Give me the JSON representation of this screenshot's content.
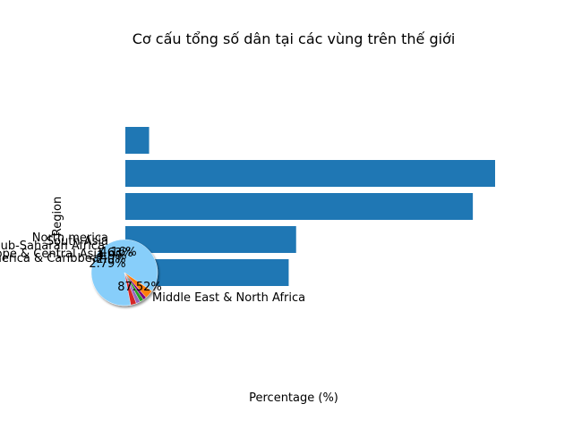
{
  "chart_data": [
    {
      "type": "bar",
      "orientation": "horizontal",
      "title": "Cơ cấu tổng số dân tại các vùng trên thế giới",
      "xlabel": "Percentage (%)",
      "ylabel": "Region",
      "bars_bottom_to_top": [
        {
          "value": 55
        },
        {
          "value": 57.5
        },
        {
          "value": 117
        },
        {
          "value": 124.5
        },
        {
          "value": 8
        }
      ],
      "xlim": [
        0,
        124.5
      ],
      "colors": {
        "bar": "#1f77b4"
      }
    },
    {
      "type": "pie",
      "slices": [
        {
          "label": "Middle East & North Africa",
          "value": 87.52,
          "pct_label": "87.52%",
          "color": "#87cefa"
        },
        {
          "label": "Latin America & Caribbean",
          "value": 2.79,
          "pct_label": "2.79%",
          "color": "#d62728"
        },
        {
          "label": "Europe & Central Asia",
          "value": 2.0,
          "pct_label": "2.0%",
          "color": "#9467bd"
        },
        {
          "label": "Sub-Saharan Africa",
          "value": 1.9,
          "pct_label": "1.9%",
          "color": "#2ca02c"
        },
        {
          "label": "South Asia",
          "value": 1.63,
          "pct_label": "1.63%",
          "color": "#800080"
        },
        {
          "label": "North merica",
          "value": 4.16,
          "pct_label": "4.16%",
          "color": "#ff7f0e"
        }
      ]
    }
  ]
}
